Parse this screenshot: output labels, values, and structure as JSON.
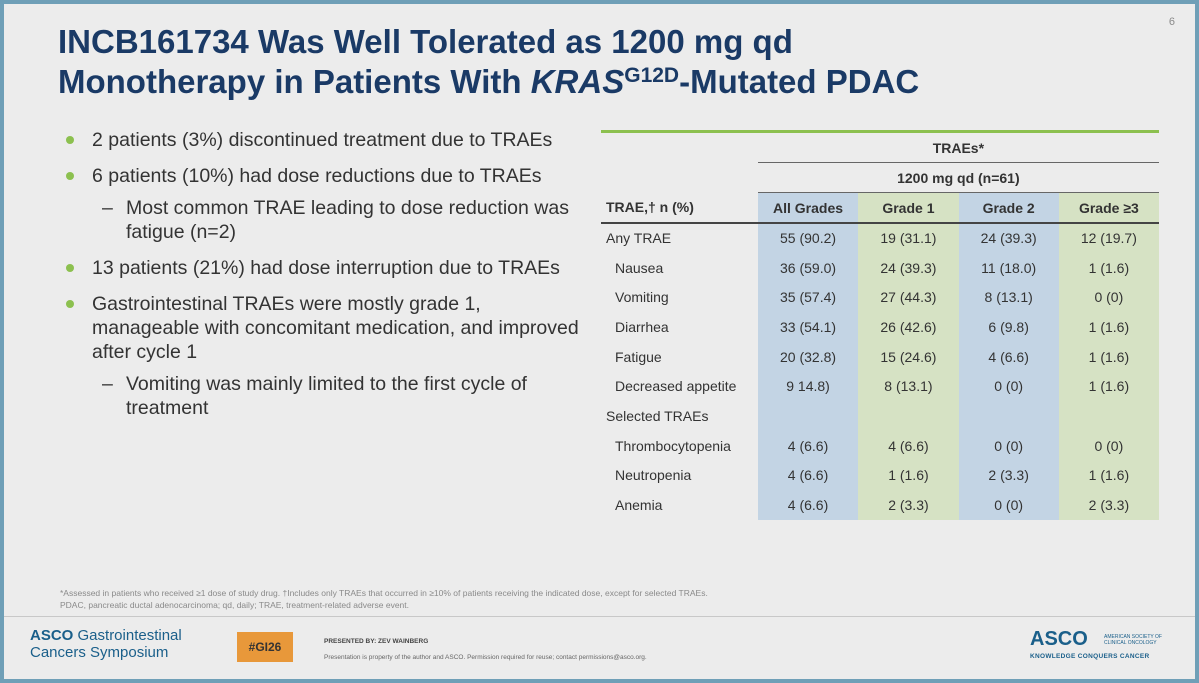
{
  "page_number": "6",
  "title": {
    "line1": "INCB161734 Was Well Tolerated as 1200 mg qd",
    "line2_pre": "Monotherapy in Patients With ",
    "line2_italic": "KRAS",
    "line2_sup": "G12D",
    "line2_post": "-Mutated PDAC"
  },
  "bullets": [
    {
      "text": "2 patients (3%) discontinued treatment due to TRAEs",
      "sub": []
    },
    {
      "text": "6 patients (10%) had dose reductions due to TRAEs",
      "sub": [
        "Most common TRAE leading to dose reduction was fatigue (n=2)"
      ]
    },
    {
      "text": "13 patients (21%) had dose interruption due to TRAEs",
      "sub": []
    },
    {
      "text": "Gastrointestinal TRAEs were mostly grade 1, manageable with concomitant medication, and improved after cycle 1",
      "sub": [
        "Vomiting was mainly limited to the first cycle of treatment"
      ]
    }
  ],
  "table": {
    "group_header": "TRAEs*",
    "dose_header": "1200 mg qd (n=61)",
    "row_header": "TRAE,† n (%)",
    "columns": [
      "All Grades",
      "Grade 1",
      "Grade 2",
      "Grade ≥3"
    ],
    "rows": [
      {
        "label": "Any TRAE",
        "indent": false,
        "values": [
          "55 (90.2)",
          "19 (31.1)",
          "24 (39.3)",
          "12 (19.7)"
        ]
      },
      {
        "label": "Nausea",
        "indent": true,
        "values": [
          "36 (59.0)",
          "24 (39.3)",
          "11 (18.0)",
          "1 (1.6)"
        ]
      },
      {
        "label": "Vomiting",
        "indent": true,
        "values": [
          "35 (57.4)",
          "27 (44.3)",
          "8 (13.1)",
          "0 (0)"
        ]
      },
      {
        "label": "Diarrhea",
        "indent": true,
        "values": [
          "33 (54.1)",
          "26 (42.6)",
          "6 (9.8)",
          "1 (1.6)"
        ]
      },
      {
        "label": "Fatigue",
        "indent": true,
        "values": [
          "20 (32.8)",
          "15 (24.6)",
          "4 (6.6)",
          "1 (1.6)"
        ]
      },
      {
        "label": "Decreased appetite",
        "indent": true,
        "values": [
          "9 14.8)",
          "8 (13.1)",
          "0 (0)",
          "1 (1.6)"
        ]
      },
      {
        "label": "Selected TRAEs",
        "indent": false,
        "values": [
          "",
          "",
          "",
          ""
        ]
      },
      {
        "label": "Thrombocytopenia",
        "indent": true,
        "values": [
          "4 (6.6)",
          "4 (6.6)",
          "0 (0)",
          "0 (0)"
        ]
      },
      {
        "label": "Neutropenia",
        "indent": true,
        "values": [
          "4 (6.6)",
          "1 (1.6)",
          "2 (3.3)",
          "1 (1.6)"
        ]
      },
      {
        "label": "Anemia",
        "indent": true,
        "values": [
          "4 (6.6)",
          "2 (3.3)",
          "0 (0)",
          "2 (3.3)"
        ]
      }
    ]
  },
  "footnote": {
    "line1": "*Assessed in patients who received ≥1 dose of study drug. †Includes only TRAEs that occurred in ≥10% of patients receiving the indicated dose, except for selected TRAEs.",
    "line2": "PDAC, pancreatic ductal adenocarcinoma; qd, daily; TRAE, treatment-related adverse event."
  },
  "footer": {
    "asco_left_brand": "ASCO",
    "asco_left_text1": " Gastrointestinal",
    "asco_left_text2": "Cancers Symposium",
    "hashtag": "#GI26",
    "presented_by": "PRESENTED BY: ZEV WAINBERG",
    "permission": "Presentation is property of the author and ASCO. Permission required for reuse; contact permissions@asco.org.",
    "asco_right_logo": "ASCO",
    "asco_right_society_line1": "AMERICAN SOCIETY OF",
    "asco_right_society_line2": "CLINICAL ONCOLOGY",
    "asco_right_tagline": "KNOWLEDGE CONQUERS CANCER"
  },
  "colors": {
    "title": "#1a3a66",
    "bullet_dot": "#8cc04f",
    "header_line": "#8cc04f",
    "col_blue": "#c3d4e4",
    "col_green": "#d6e2c4",
    "hashtag_bg": "#e8983a",
    "brand_blue": "#1a5f8a"
  }
}
